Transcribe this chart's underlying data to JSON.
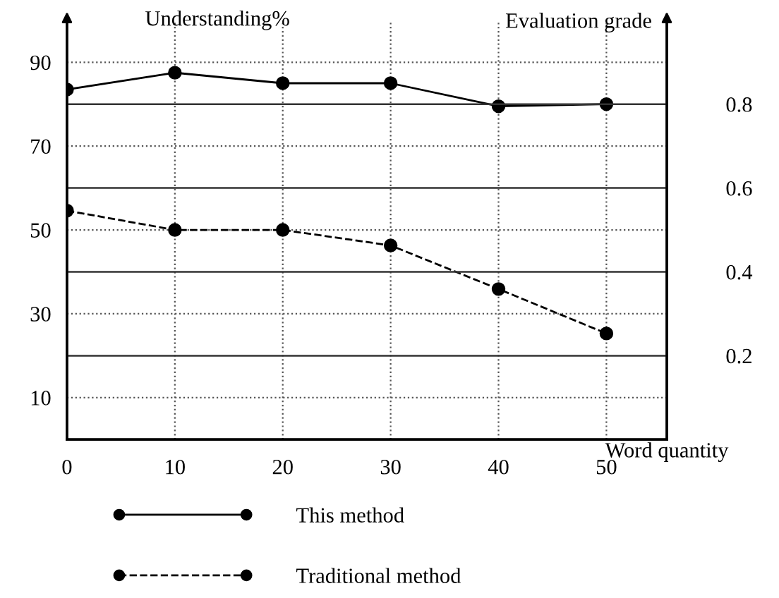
{
  "chart_data": {
    "type": "line",
    "xlabel": "Word quantity",
    "ylabel": "Understanding%",
    "y2label": "Evaluation grade",
    "x": [
      0,
      10,
      20,
      30,
      40,
      50
    ],
    "series": [
      {
        "name": "This method",
        "color": "#000000",
        "line_style": "solid",
        "values": [
          83.5,
          87.5,
          85,
          85,
          79.5,
          80
        ]
      },
      {
        "name": "Traditional method",
        "color": "#000000",
        "line_style": "dashed",
        "values": [
          54.6,
          50,
          50,
          46.3,
          35.9,
          25.3
        ]
      }
    ],
    "xlim": [
      0,
      55.6
    ],
    "xticks": [
      0,
      10,
      20,
      30,
      40,
      50
    ],
    "ylim": [
      0,
      100
    ],
    "yticks": [
      10,
      30,
      50,
      70,
      90
    ],
    "y2lim": [
      0,
      1
    ],
    "y2ticks": [
      0.2,
      0.4,
      0.6,
      0.8
    ],
    "grid": true,
    "marker": "circle",
    "legend": "bottom"
  }
}
